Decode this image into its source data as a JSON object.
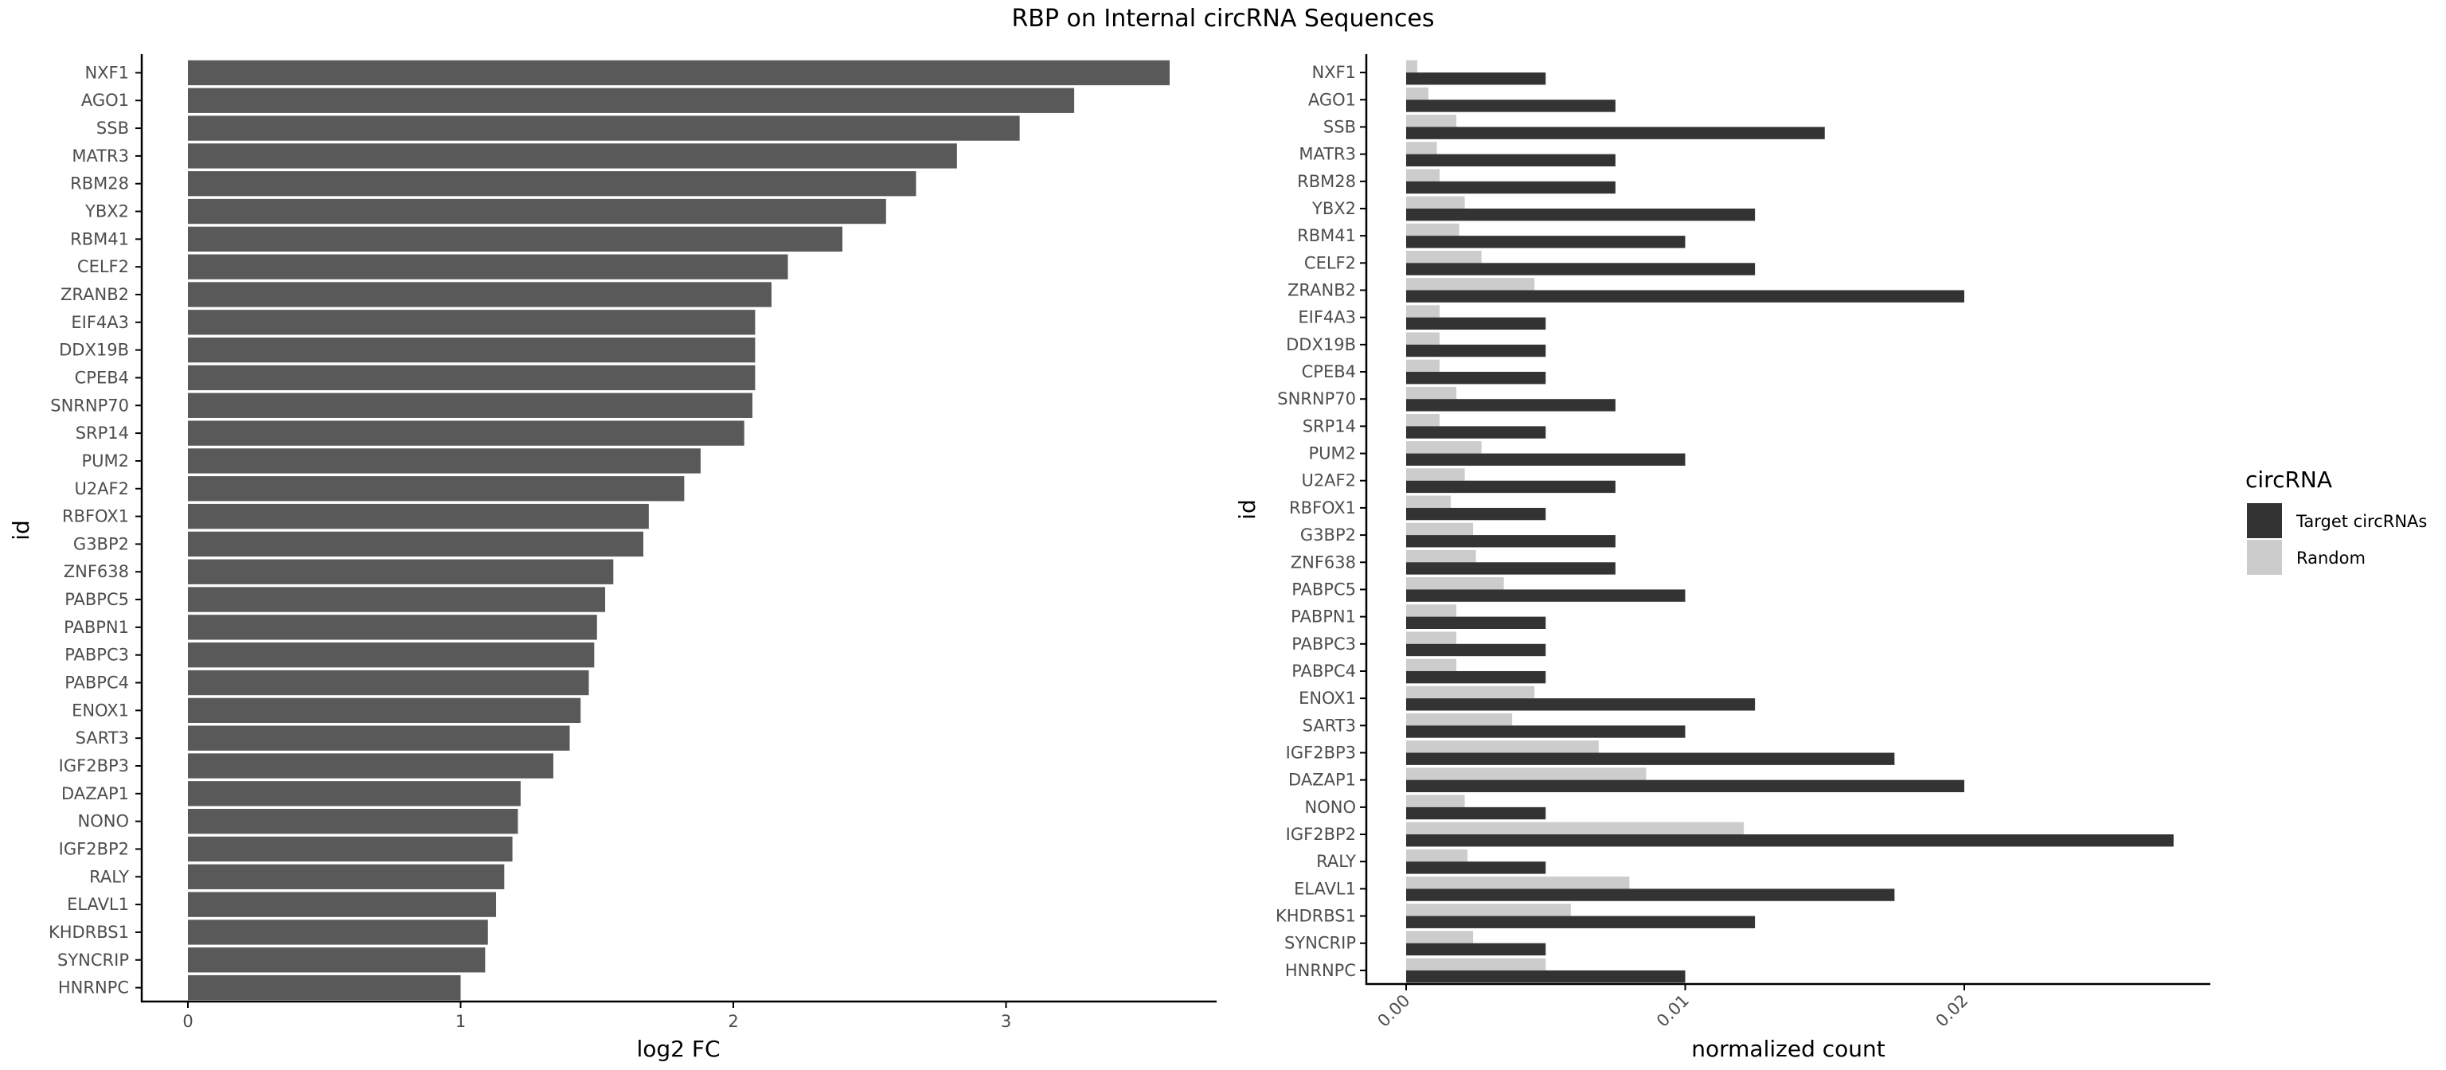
{
  "title": "RBP on Internal circRNA Sequences",
  "colors": {
    "left_bar": "#595959",
    "target": "#333333",
    "random": "#cccccc",
    "axis": "#000000",
    "tick_text": "#4d4d4d"
  },
  "chart_data": [
    {
      "type": "bar",
      "orientation": "horizontal",
      "title": "",
      "xlabel": "log2 FC",
      "ylabel": "id",
      "xlim": [
        0,
        3.6
      ],
      "xticks": [
        0,
        1,
        2,
        3
      ],
      "xtick_labels": [
        "0",
        "1",
        "2",
        "3"
      ],
      "grid": false,
      "categories": [
        "NXF1",
        "AGO1",
        "SSB",
        "MATR3",
        "RBM28",
        "YBX2",
        "RBM41",
        "CELF2",
        "ZRANB2",
        "EIF4A3",
        "DDX19B",
        "CPEB4",
        "SNRNP70",
        "SRP14",
        "PUM2",
        "U2AF2",
        "RBFOX1",
        "G3BP2",
        "ZNF638",
        "PABPC5",
        "PABPN1",
        "PABPC3",
        "PABPC4",
        "ENOX1",
        "SART3",
        "IGF2BP3",
        "DAZAP1",
        "NONO",
        "IGF2BP2",
        "RALY",
        "ELAVL1",
        "KHDRBS1",
        "SYNCRIP",
        "HNRNPC"
      ],
      "values": [
        3.6,
        3.25,
        3.05,
        2.82,
        2.67,
        2.56,
        2.4,
        2.2,
        2.14,
        2.08,
        2.08,
        2.08,
        2.07,
        2.04,
        1.88,
        1.82,
        1.69,
        1.67,
        1.56,
        1.53,
        1.5,
        1.49,
        1.47,
        1.44,
        1.4,
        1.34,
        1.22,
        1.21,
        1.19,
        1.16,
        1.13,
        1.1,
        1.09,
        1.0
      ]
    },
    {
      "type": "bar",
      "orientation": "horizontal",
      "grouped": true,
      "title": "",
      "xlabel": "normalized count",
      "ylabel": "id",
      "xlim": [
        0,
        0.0275
      ],
      "xticks": [
        0,
        0.01,
        0.02
      ],
      "xtick_labels": [
        "0.00",
        "0.01",
        "0.02"
      ],
      "grid": false,
      "legend": {
        "title": "circRNA",
        "position": "right",
        "entries": [
          "Target circRNAs",
          "Random"
        ]
      },
      "categories": [
        "NXF1",
        "AGO1",
        "SSB",
        "MATR3",
        "RBM28",
        "YBX2",
        "RBM41",
        "CELF2",
        "ZRANB2",
        "EIF4A3",
        "DDX19B",
        "CPEB4",
        "SNRNP70",
        "SRP14",
        "PUM2",
        "U2AF2",
        "RBFOX1",
        "G3BP2",
        "ZNF638",
        "PABPC5",
        "PABPN1",
        "PABPC3",
        "PABPC4",
        "ENOX1",
        "SART3",
        "IGF2BP3",
        "DAZAP1",
        "NONO",
        "IGF2BP2",
        "RALY",
        "ELAVL1",
        "KHDRBS1",
        "SYNCRIP",
        "HNRNPC"
      ],
      "series": [
        {
          "name": "Target circRNAs",
          "values": [
            0.005,
            0.0075,
            0.015,
            0.0075,
            0.0075,
            0.0125,
            0.01,
            0.0125,
            0.02,
            0.005,
            0.005,
            0.005,
            0.0075,
            0.005,
            0.01,
            0.0075,
            0.005,
            0.0075,
            0.0075,
            0.01,
            0.005,
            0.005,
            0.005,
            0.0125,
            0.01,
            0.0175,
            0.02,
            0.005,
            0.0275,
            0.005,
            0.0175,
            0.0125,
            0.005,
            0.01
          ]
        },
        {
          "name": "Random",
          "values": [
            0.0004,
            0.0008,
            0.0018,
            0.0011,
            0.0012,
            0.0021,
            0.0019,
            0.0027,
            0.0046,
            0.0012,
            0.0012,
            0.0012,
            0.0018,
            0.0012,
            0.0027,
            0.0021,
            0.0016,
            0.0024,
            0.0025,
            0.0035,
            0.0018,
            0.0018,
            0.0018,
            0.0046,
            0.0038,
            0.0069,
            0.0086,
            0.0021,
            0.0121,
            0.0022,
            0.008,
            0.0059,
            0.0024,
            0.005
          ]
        }
      ]
    }
  ]
}
